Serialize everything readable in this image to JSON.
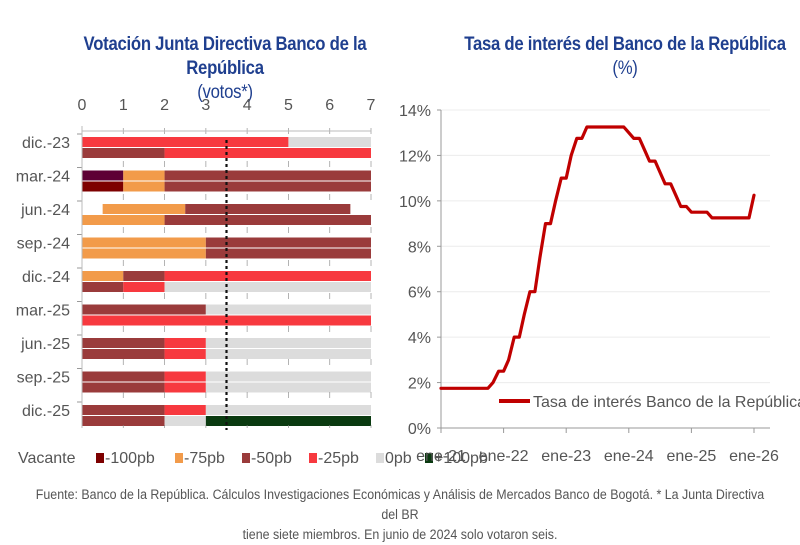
{
  "chart_data": [
    {
      "type": "bar",
      "orientation": "horizontal-stacked",
      "title": "Votación Junta Directiva Banco de la República",
      "title_unit": "(votos*)",
      "xlabel": "",
      "ylabel": "",
      "xlim": [
        0,
        7
      ],
      "xticks": [
        "0",
        "1",
        "2",
        "3",
        "4",
        "5",
        "6",
        "7"
      ],
      "reference_line": {
        "x": 3.5,
        "style": "dotted"
      },
      "categories": [
        "dic.-23",
        "mar.-24",
        "jun.-24",
        "sep.-24",
        "dic.-24",
        "mar.-25",
        "jun.-25",
        "sep.-25",
        "dic.-25"
      ],
      "legend": [
        {
          "key": "vacante",
          "label": "Vacante",
          "color": "#5e0035"
        },
        {
          "key": "m100",
          "label": "-100pb",
          "color": "#7d0000"
        },
        {
          "key": "m75",
          "label": "-75pb",
          "color": "#f29b4a"
        },
        {
          "key": "m50",
          "label": "-50pb",
          "color": "#9a3b3b"
        },
        {
          "key": "m25",
          "label": "-25pb",
          "color": "#f7393f"
        },
        {
          "key": "z0",
          "label": "0pb",
          "color": "#dcdcdc"
        },
        {
          "key": "p100",
          "label": "+100pb",
          "color": "#0a3a10"
        }
      ],
      "rows": [
        {
          "category": "dic.-23",
          "bars": [
            {
              "start": 0,
              "segments": [
                [
                  "m25",
                  5
                ],
                [
                  "z0",
                  2
                ]
              ]
            },
            {
              "start": 0,
              "segments": [
                [
                  "m50",
                  2
                ],
                [
                  "m25",
                  5
                ]
              ]
            }
          ]
        },
        {
          "category": "mar.-24",
          "bars": [
            {
              "start": 0,
              "segments": [
                [
                  "vacante",
                  1
                ],
                [
                  "m75",
                  1
                ],
                [
                  "m50",
                  5
                ]
              ]
            },
            {
              "start": 0,
              "segments": [
                [
                  "m100",
                  1
                ],
                [
                  "m75",
                  1
                ],
                [
                  "m50",
                  5
                ]
              ]
            }
          ]
        },
        {
          "category": "jun.-24",
          "bars": [
            {
              "start": 0.5,
              "segments": [
                [
                  "m75",
                  2
                ],
                [
                  "m50",
                  4
                ]
              ]
            },
            {
              "start": 0,
              "segments": [
                [
                  "m75",
                  2
                ],
                [
                  "m50",
                  5
                ]
              ]
            }
          ]
        },
        {
          "category": "sep.-24",
          "bars": [
            {
              "start": 0,
              "segments": [
                [
                  "m75",
                  3
                ],
                [
                  "m50",
                  4
                ]
              ]
            },
            {
              "start": 0,
              "segments": [
                [
                  "m75",
                  3
                ],
                [
                  "m50",
                  4
                ]
              ]
            }
          ]
        },
        {
          "category": "dic.-24",
          "bars": [
            {
              "start": 0,
              "segments": [
                [
                  "m75",
                  1
                ],
                [
                  "m50",
                  1
                ],
                [
                  "m25",
                  5
                ]
              ]
            },
            {
              "start": 0,
              "segments": [
                [
                  "m50",
                  1
                ],
                [
                  "m25",
                  1
                ],
                [
                  "z0",
                  5
                ]
              ]
            }
          ]
        },
        {
          "category": "mar.-25",
          "bars": [
            {
              "start": 0,
              "segments": [
                [
                  "m50",
                  3
                ],
                [
                  "z0",
                  4
                ]
              ]
            },
            {
              "start": 0,
              "segments": [
                [
                  "m25",
                  7
                ]
              ]
            }
          ]
        },
        {
          "category": "jun.-25",
          "bars": [
            {
              "start": 0,
              "segments": [
                [
                  "m50",
                  2
                ],
                [
                  "m25",
                  1
                ],
                [
                  "z0",
                  4
                ]
              ]
            },
            {
              "start": 0,
              "segments": [
                [
                  "m50",
                  2
                ],
                [
                  "m25",
                  1
                ],
                [
                  "z0",
                  4
                ]
              ]
            }
          ]
        },
        {
          "category": "sep.-25",
          "bars": [
            {
              "start": 0,
              "segments": [
                [
                  "m50",
                  2
                ],
                [
                  "m25",
                  1
                ],
                [
                  "z0",
                  4
                ]
              ]
            },
            {
              "start": 0,
              "segments": [
                [
                  "m50",
                  2
                ],
                [
                  "m25",
                  1
                ],
                [
                  "z0",
                  4
                ]
              ]
            }
          ]
        },
        {
          "category": "dic.-25",
          "bars": [
            {
              "start": 0,
              "segments": [
                [
                  "m50",
                  2
                ],
                [
                  "m25",
                  1
                ],
                [
                  "z0",
                  4
                ]
              ]
            },
            {
              "start": 0,
              "segments": [
                [
                  "m50",
                  2
                ],
                [
                  "z0",
                  1
                ],
                [
                  "p100",
                  4
                ]
              ]
            }
          ]
        }
      ]
    },
    {
      "type": "line",
      "title": "Tasa de interés del Banco de la República",
      "title_unit": "(%)",
      "xlabel": "",
      "ylabel": "",
      "ylim": [
        0,
        14
      ],
      "yticks": [
        "0%",
        "2%",
        "4%",
        "6%",
        "8%",
        "10%",
        "12%",
        "14%"
      ],
      "xlim": [
        2021.0,
        2026.0
      ],
      "xticks": [
        "ene-21",
        "ene-22",
        "ene-23",
        "ene-24",
        "ene-25",
        "ene-26"
      ],
      "grid": true,
      "legend_position": "bottom-right",
      "series": [
        {
          "name": "Tasa de interés Banco de la República",
          "color": "#c00000",
          "x": [
            2021.0,
            2021.25,
            2021.5,
            2021.67,
            2021.75,
            2021.83,
            2021.92,
            2022.0,
            2022.08,
            2022.17,
            2022.25,
            2022.33,
            2022.42,
            2022.5,
            2022.58,
            2022.67,
            2022.75,
            2022.83,
            2022.92,
            2023.0,
            2023.08,
            2023.17,
            2023.25,
            2023.33,
            2023.5,
            2023.75,
            2023.92,
            2024.0,
            2024.08,
            2024.17,
            2024.25,
            2024.33,
            2024.42,
            2024.5,
            2024.58,
            2024.67,
            2024.75,
            2024.83,
            2024.92,
            2025.0,
            2025.17,
            2025.25,
            2025.33,
            2025.5,
            2025.75,
            2025.92,
            2026.0
          ],
          "values": [
            1.75,
            1.75,
            1.75,
            1.75,
            1.75,
            2.0,
            2.5,
            2.5,
            3.0,
            4.0,
            4.0,
            5.0,
            6.0,
            6.0,
            7.5,
            9.0,
            9.0,
            10.0,
            11.0,
            11.0,
            12.0,
            12.75,
            12.75,
            13.25,
            13.25,
            13.25,
            13.25,
            13.0,
            12.75,
            12.75,
            12.25,
            11.75,
            11.75,
            11.25,
            10.75,
            10.75,
            10.25,
            9.75,
            9.75,
            9.5,
            9.5,
            9.5,
            9.25,
            9.25,
            9.25,
            9.25,
            10.25
          ]
        }
      ]
    }
  ],
  "footnote": {
    "line1": "Fuente: Banco de la República. Cálculos Investigaciones Económicas y Análisis de Mercados Banco de Bogotá. * La Junta Directiva del BR",
    "line2": "tiene siete miembros. En junio de 2024 solo votaron seis."
  }
}
